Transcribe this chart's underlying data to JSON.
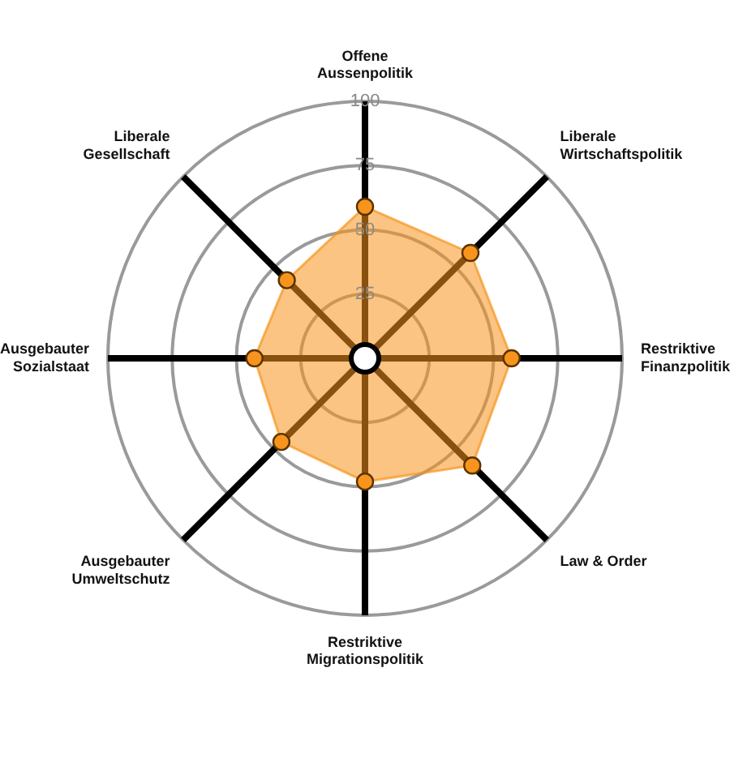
{
  "chart_data": {
    "type": "radar",
    "categories": [
      "Offene\nAussenpolitik",
      "Liberale\nWirtschaftspolitik",
      "Restriktive\nFinanzpolitik",
      "Law & Order",
      "Restriktive\nMigrationspolitik",
      "Ausgebauter\nUmweltschutz",
      "Ausgebauter\nSozialstaat",
      "Liberale\nGesellschaft"
    ],
    "series": [
      {
        "color": "#f7941d",
        "values": [
          59,
          58,
          57,
          59,
          48,
          46,
          43,
          43
        ]
      }
    ],
    "ylim": [
      0,
      100
    ],
    "yticks": [
      25,
      50,
      75,
      100
    ],
    "grid": true,
    "legend": false,
    "marker": "circle"
  }
}
